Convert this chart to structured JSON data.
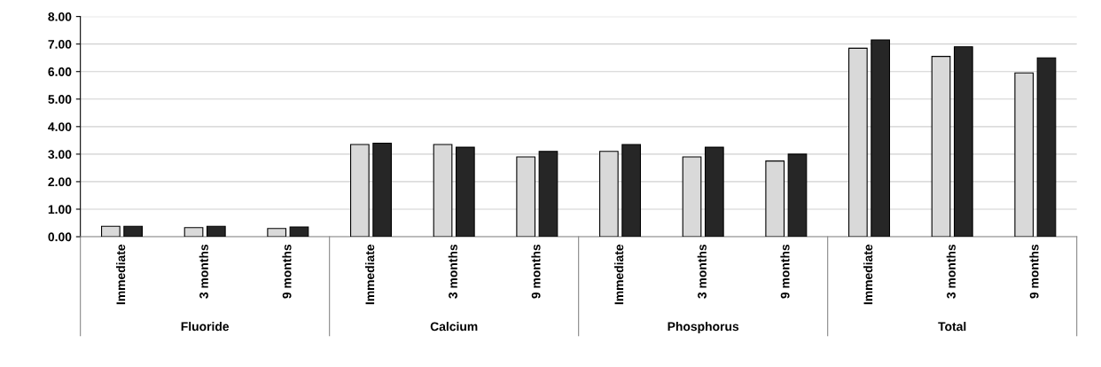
{
  "chart_data": {
    "type": "bar",
    "categories": [
      "Immediate",
      "3 months",
      "9 months",
      "Immediate",
      "3 months",
      "9 months",
      "Immediate",
      "3 months",
      "9 months",
      "Immediate",
      "3 months",
      "9 months"
    ],
    "series": [
      {
        "color": "#d9d9d9",
        "values": [
          0.38,
          0.33,
          0.3,
          3.35,
          3.35,
          2.9,
          3.1,
          2.9,
          2.75,
          6.85,
          6.55,
          5.95
        ]
      },
      {
        "color": "#262626",
        "values": [
          0.38,
          0.38,
          0.35,
          3.4,
          3.25,
          3.1,
          3.35,
          3.25,
          3.0,
          7.15,
          6.9,
          6.5
        ]
      }
    ],
    "annotations": [
      "Fluoride",
      "Calcium",
      "Phosphorus",
      "Total"
    ],
    "ylim": [
      0,
      8
    ],
    "yticks": [
      {
        "value": 0,
        "label": "0.00"
      },
      {
        "value": 1,
        "label": "1.00"
      },
      {
        "value": 2,
        "label": "2.00"
      },
      {
        "value": 3,
        "label": "3.00"
      },
      {
        "value": 4,
        "label": "4.00"
      },
      {
        "value": 5,
        "label": "5.00"
      },
      {
        "value": 6,
        "label": "6.00"
      },
      {
        "value": 7,
        "label": "7.00"
      },
      {
        "value": 8,
        "label": "8.00"
      }
    ],
    "grid": "y"
  }
}
